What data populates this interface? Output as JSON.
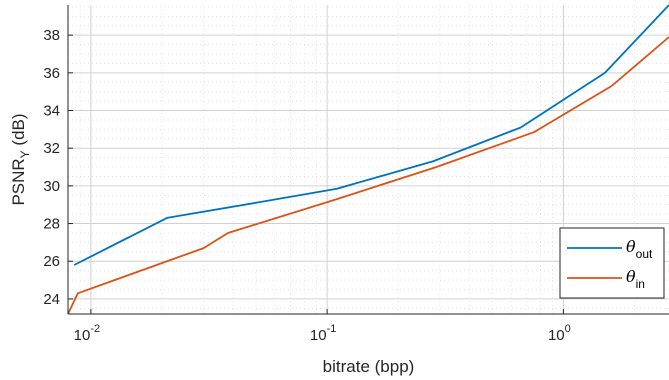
{
  "chart_data": {
    "type": "line",
    "title": "",
    "xlabel": "bitrate (bpp)",
    "ylabel": "PSNR",
    "ylabel_sub": "Y",
    "ylabel_unit": " (dB)",
    "xscale": "log",
    "xlim": [
      0.008,
      2.8
    ],
    "ylim": [
      23.2,
      39.6
    ],
    "grid": true,
    "minor_grid": true,
    "legend_position": "bottom-right",
    "x_ticks": [
      {
        "value": 0.01,
        "base": "10",
        "exp": "-2"
      },
      {
        "value": 0.1,
        "base": "10",
        "exp": "-1"
      },
      {
        "value": 1,
        "base": "10",
        "exp": "0"
      }
    ],
    "y_ticks": [
      24,
      26,
      28,
      30,
      32,
      34,
      36,
      38
    ],
    "series": [
      {
        "name": "θ",
        "name_sub": "out",
        "color": "#0072BD",
        "points": [
          [
            0.0085,
            25.8
          ],
          [
            0.021,
            28.3
          ],
          [
            0.05,
            29.1
          ],
          [
            0.11,
            29.85
          ],
          [
            0.28,
            31.3
          ],
          [
            0.66,
            33.1
          ],
          [
            1.5,
            36.0
          ],
          [
            2.8,
            39.6
          ]
        ]
      },
      {
        "name": "θ",
        "name_sub": "in",
        "color": "#D95319",
        "points": [
          [
            0.008,
            23.2
          ],
          [
            0.0088,
            24.3
          ],
          [
            0.03,
            26.7
          ],
          [
            0.038,
            27.5
          ],
          [
            0.11,
            29.3
          ],
          [
            0.29,
            31.0
          ],
          [
            0.75,
            32.85
          ],
          [
            1.6,
            35.3
          ],
          [
            2.8,
            37.9
          ]
        ]
      }
    ]
  }
}
